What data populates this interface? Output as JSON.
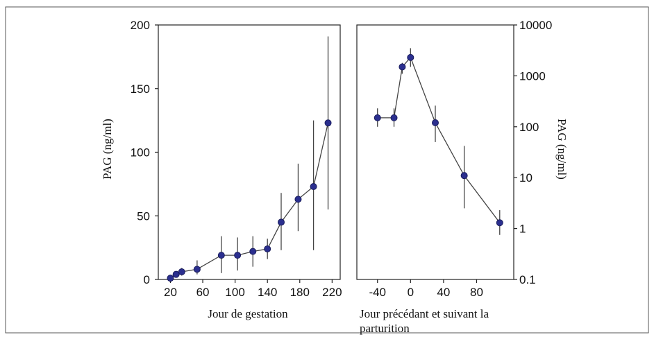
{
  "chart_data": [
    {
      "type": "line",
      "xlabel": "Jour de gestation",
      "ylabel": "PAG (ng/ml)",
      "xlim": [
        5,
        230
      ],
      "ylim": [
        0,
        200
      ],
      "yscale": "linear",
      "xticks": [
        "20",
        "60",
        "100",
        "140",
        "180",
        "220"
      ],
      "yticks": [
        "0",
        "50",
        "100",
        "150",
        "200"
      ],
      "grid": false,
      "series": [
        {
          "x": [
            20,
            27,
            34,
            53,
            83,
            103,
            122,
            140,
            157,
            178,
            197,
            215
          ],
          "y": [
            1,
            4,
            6,
            8,
            19,
            19,
            22,
            24,
            45,
            63,
            73,
            123
          ],
          "err_low": [
            0,
            2,
            3,
            4,
            5,
            7,
            10,
            16,
            23,
            38,
            23,
            55
          ],
          "err_high": [
            2,
            6,
            9,
            15,
            34,
            33,
            34,
            32,
            68,
            91,
            125,
            191
          ]
        }
      ]
    },
    {
      "type": "line",
      "xlabel": "Jour précédant et suivant la parturition",
      "ylabel": "PAG (ng/ml)",
      "xlim": [
        -65,
        125
      ],
      "ylim": [
        0.1,
        10000
      ],
      "yscale": "log",
      "xticks": [
        "-40",
        "0",
        "40",
        "80"
      ],
      "yticks": [
        "0.1",
        "1",
        "10",
        "100",
        "1000",
        "10000"
      ],
      "grid": false,
      "series": [
        {
          "x": [
            -40,
            -20,
            -10,
            0,
            30,
            65,
            108
          ],
          "y": [
            150,
            150,
            1500,
            2300,
            120,
            11,
            1.3
          ],
          "err_low": [
            100,
            100,
            1100,
            1500,
            50,
            2.5,
            0.75
          ],
          "err_high": [
            230,
            230,
            1800,
            3500,
            260,
            42,
            2.3
          ]
        }
      ]
    }
  ]
}
